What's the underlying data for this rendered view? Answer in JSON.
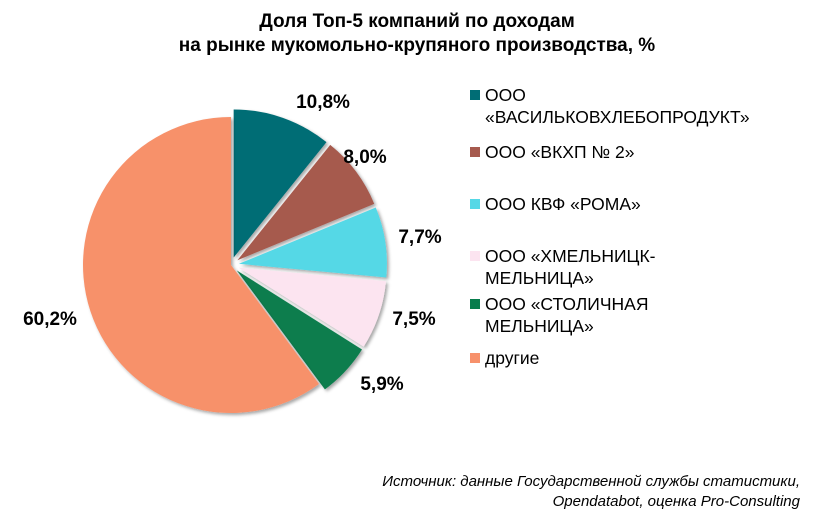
{
  "title": {
    "line1": "Доля Топ-5 компаний по доходам",
    "line2": "на рынке мукомольно-крупяного производства, %"
  },
  "chart_data": {
    "type": "pie",
    "title": "Доля Топ-5 компаний по доходам на рынке мукомольно-крупяного производства, %",
    "legend_position": "right",
    "slices": [
      {
        "name": "ООО «ВАСИЛЬКОВХЛЕБОПРОДУКТ»",
        "legend_lines": [
          "ООО",
          "«ВАСИЛЬКОВХЛЕБОПРОДУКТ»"
        ],
        "value": 10.8,
        "label": "10,8%",
        "color": "#006d75",
        "exploded": true
      },
      {
        "name": "ООО «ВКХП № 2»",
        "legend_lines": [
          "ООО «ВКХП № 2»"
        ],
        "value": 8.0,
        "label": "8,0%",
        "color": "#a65a4e",
        "exploded": true
      },
      {
        "name": "ООО КВФ «РОМА»",
        "legend_lines": [
          "ООО КВФ «РОМА»"
        ],
        "value": 7.7,
        "label": "7,7%",
        "color": "#55d8e6",
        "exploded": true
      },
      {
        "name": "ООО «ХМЕЛЬНИЦК-МЕЛЬНИЦА»",
        "legend_lines": [
          "ООО «ХМЕЛЬНИЦК-",
          "МЕЛЬНИЦА»"
        ],
        "value": 7.5,
        "label": "7,5%",
        "color": "#fce4f0",
        "exploded": true
      },
      {
        "name": "ООО «СТОЛИЧНАЯ МЕЛЬНИЦА»",
        "legend_lines": [
          "ООО «СТОЛИЧНАЯ",
          "МЕЛЬНИЦА»"
        ],
        "value": 5.9,
        "label": "5,9%",
        "color": "#087d4d",
        "exploded": true
      },
      {
        "name": "другие",
        "legend_lines": [
          "другие"
        ],
        "value": 60.2,
        "label": "60,2%",
        "color": "#f7916b",
        "exploded": false
      }
    ]
  },
  "source": {
    "line1": "Источник: данные Государственной службы статистики,",
    "line2": "Opendatabot, оценка Pro-Consulting"
  }
}
